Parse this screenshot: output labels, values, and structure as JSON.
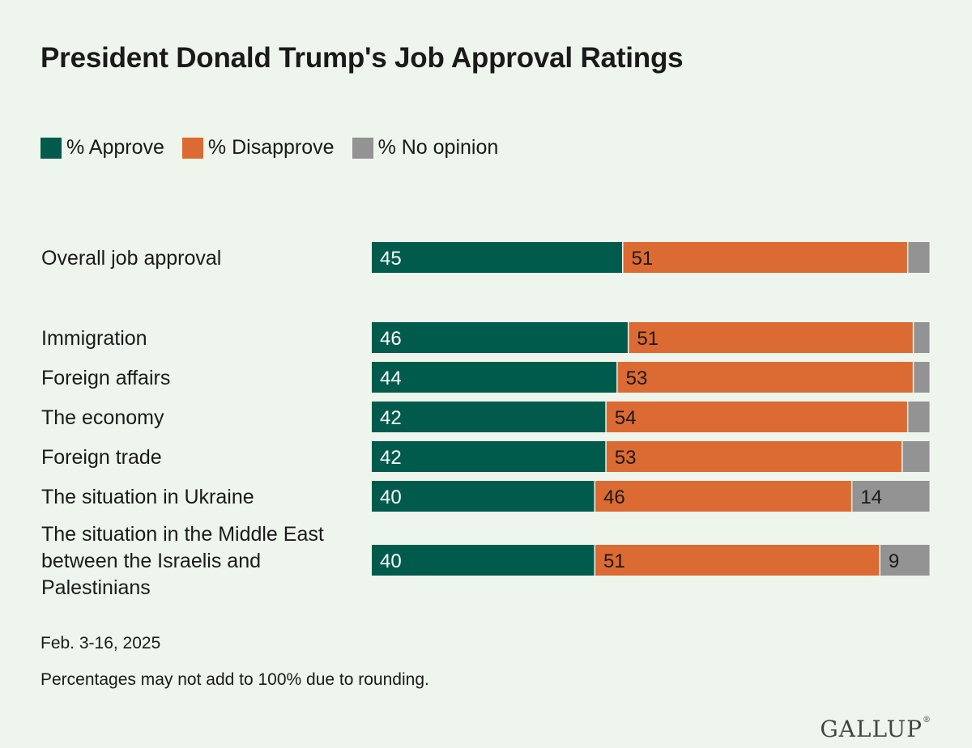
{
  "chart_data": {
    "type": "bar",
    "orientation": "horizontal",
    "stacked": true,
    "title": "President Donald Trump's Job Approval Ratings",
    "categories": [
      "Overall job approval",
      "Immigration",
      "Foreign affairs",
      "The economy",
      "Foreign trade",
      "The situation in Ukraine",
      "The situation in the Middle East between the Israelis and Palestinians"
    ],
    "series": [
      {
        "name": "% Approve",
        "color": "#005b4c",
        "label_color": "#ffffff",
        "values": [
          45,
          46,
          44,
          42,
          42,
          40,
          40
        ]
      },
      {
        "name": "% Disapprove",
        "color": "#dc6a33",
        "label_color": "#1a1a1a",
        "values": [
          51,
          51,
          53,
          54,
          53,
          46,
          51
        ]
      },
      {
        "name": "% No opinion",
        "color": "#939393",
        "label_color": "#1a1a1a",
        "values": [
          null,
          null,
          null,
          null,
          null,
          14,
          9
        ]
      }
    ],
    "xlim": [
      0,
      100
    ],
    "grid": false,
    "legend_position": "top-left"
  },
  "notes": {
    "date": "Feb. 3-16, 2025",
    "rounding": "Percentages may not add to 100% due to rounding."
  },
  "brand": {
    "name": "GALLUP",
    "mark": "®"
  }
}
